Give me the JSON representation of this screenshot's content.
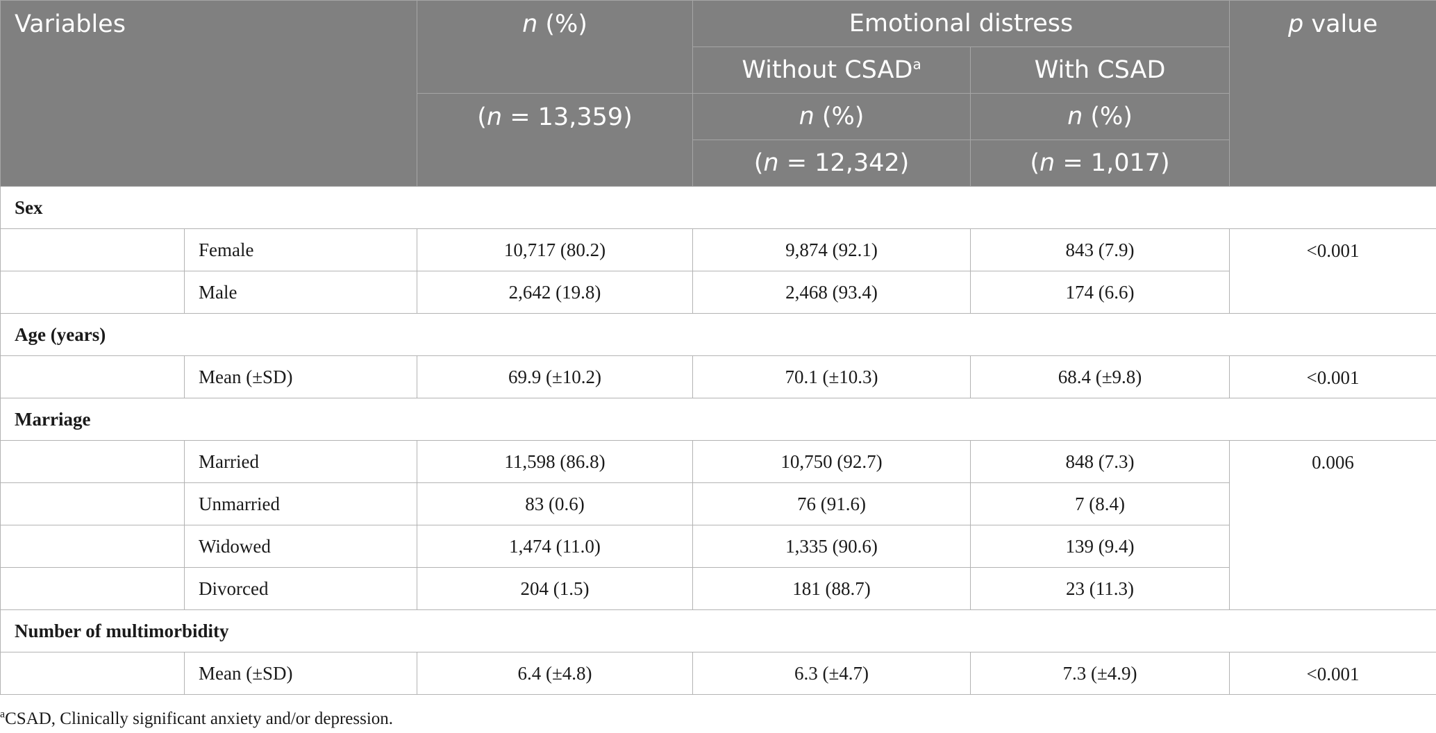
{
  "header": {
    "variables": "Variables",
    "n_pct_italic": "n",
    "n_pct_rest": " (%)",
    "total_n": "(n = 13,359)",
    "emotional_distress": "Emotional distress",
    "without_csad": "Without CSAD",
    "without_csad_sup": "a",
    "with_csad": "With CSAD",
    "sub_n_italic": "n",
    "sub_n_rest": " (%)",
    "without_n": "(n = 12,342)",
    "with_n": "(n = 1,017)",
    "p_italic": "p",
    "p_rest": " value"
  },
  "sections": [
    {
      "category": "Sex",
      "rows": [
        {
          "label": "Female",
          "total": "10,717 (80.2)",
          "without": "9,874 (92.1)",
          "with": "843 (7.9)"
        },
        {
          "label": "Male",
          "total": "2,642 (19.8)",
          "without": "2,468 (93.4)",
          "with": "174 (6.6)"
        }
      ],
      "p_value": "<0.001"
    },
    {
      "category": "Age (years)",
      "rows": [
        {
          "label": "Mean (±SD)",
          "total": "69.9 (±10.2)",
          "without": "70.1 (±10.3)",
          "with": "68.4 (±9.8)"
        }
      ],
      "p_value": "<0.001"
    },
    {
      "category": "Marriage",
      "rows": [
        {
          "label": "Married",
          "total": "11,598 (86.8)",
          "without": "10,750 (92.7)",
          "with": "848 (7.3)"
        },
        {
          "label": "Unmarried",
          "total": "83 (0.6)",
          "without": "76 (91.6)",
          "with": "7 (8.4)"
        },
        {
          "label": "Widowed",
          "total": "1,474 (11.0)",
          "without": "1,335 (90.6)",
          "with": "139 (9.4)"
        },
        {
          "label": "Divorced",
          "total": "204 (1.5)",
          "without": "181 (88.7)",
          "with": "23 (11.3)"
        }
      ],
      "p_value": "0.006"
    },
    {
      "category": "Number of multimorbidity",
      "rows": [
        {
          "label": "Mean (±SD)",
          "total": "6.4 (±4.8)",
          "without": "6.3 (±4.7)",
          "with": "7.3 (±4.9)"
        }
      ],
      "p_value": "<0.001"
    }
  ],
  "footnote": {
    "marker": "a",
    "text": "CSAD, Clinically significant anxiety and/or depression."
  }
}
